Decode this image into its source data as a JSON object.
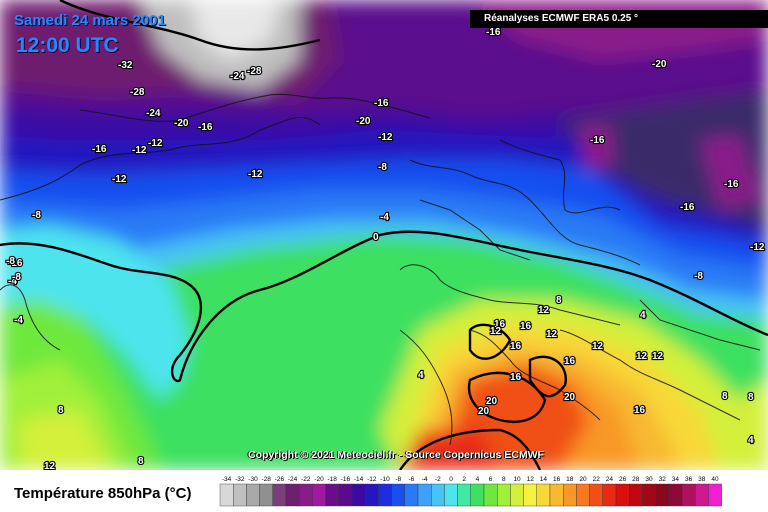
{
  "header": {
    "date": "Samedi 24 mars 2001",
    "time": "12:00 UTC",
    "source": "Réanalyses ECMWF ERA5 0.25 °"
  },
  "copyright": "Copyright © 2021 Meteociel.fr - Source Copernicus ECMWF",
  "legend": {
    "title": "Température 850hPa (°C)",
    "ticks": [
      "-34",
      "-32",
      "-30",
      "-28",
      "-26",
      "-24",
      "-22",
      "-20",
      "-18",
      "-16",
      "-14",
      "-12",
      "-10",
      "-8",
      "-6",
      "-4",
      "-2",
      "0",
      "2",
      "4",
      "6",
      "8",
      "10",
      "12",
      "14",
      "16",
      "18",
      "20",
      "22",
      "24",
      "26",
      "28",
      "30",
      "32",
      "34",
      "36",
      "38",
      "40"
    ],
    "colors": [
      "#d8d8d8",
      "#c0c0c0",
      "#a8a8a8",
      "#909090",
      "#7a3f7a",
      "#6e1f6e",
      "#8a1c8a",
      "#a01aa0",
      "#6a0d8c",
      "#5a0a8c",
      "#3b0aa3",
      "#2416c0",
      "#1c2ee0",
      "#1850f0",
      "#2a7af5",
      "#3ea0f8",
      "#48c4f4",
      "#4ee4ee",
      "#40e8a0",
      "#3ee060",
      "#6ee83e",
      "#a0f03a",
      "#d4f03a",
      "#f8f040",
      "#f8d838",
      "#f8b830",
      "#f89828",
      "#f87820",
      "#f05018",
      "#e82a14",
      "#d81010",
      "#c00810",
      "#a00818",
      "#880820",
      "#900838",
      "#b01060",
      "#d01890",
      "#f020d0"
    ]
  },
  "isotherm_labels": [
    "-32",
    "-28",
    "-24",
    "-28",
    "-24",
    "-20",
    "-16",
    "-16",
    "-12",
    "-12",
    "-12",
    "-16",
    "-20",
    "-12",
    "-16",
    "-8",
    "-8",
    "-12",
    "-4",
    "-8",
    "-16",
    "-16",
    "-16",
    "-20",
    "-12",
    "-16",
    "-8",
    "-4",
    "0",
    "-4",
    "-8",
    "16",
    "12",
    "12",
    "16",
    "16",
    "12",
    "12",
    "12",
    "16",
    "20",
    "20",
    "20",
    "16",
    "16",
    "12",
    "8",
    "8",
    "4",
    "4",
    "8",
    "8",
    "12",
    "8",
    "4"
  ]
}
